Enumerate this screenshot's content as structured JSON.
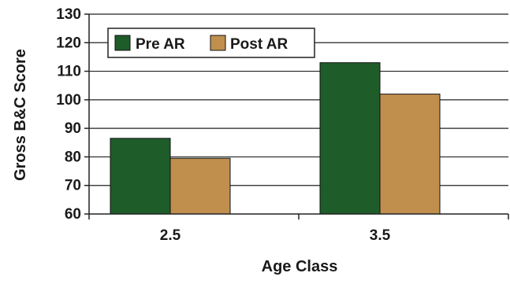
{
  "chart_data": {
    "type": "bar",
    "title": "",
    "xlabel": "Age Class",
    "ylabel": "Gross B&C Score",
    "categories": [
      "2.5",
      "3.5"
    ],
    "series": [
      {
        "name": "Pre AR",
        "values": [
          86.5,
          113
        ],
        "color": "#1e5c2a"
      },
      {
        "name": "Post AR",
        "values": [
          79.5,
          102
        ],
        "color": "#c08f4e"
      }
    ],
    "ylim": [
      60,
      130
    ],
    "yticks": [
      60,
      70,
      80,
      90,
      100,
      110,
      120,
      130
    ],
    "grid": true,
    "legend_position": "top-left"
  }
}
